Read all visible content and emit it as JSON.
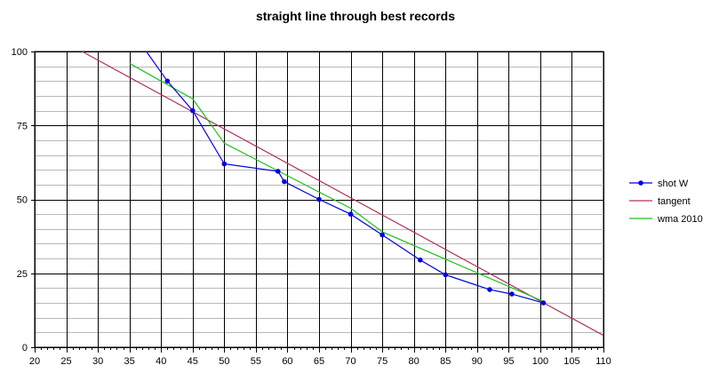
{
  "chart_data": {
    "type": "line",
    "title": "straight line through best records",
    "xlabel": "",
    "ylabel": "",
    "xlim": [
      20,
      110
    ],
    "ylim": [
      0,
      100
    ],
    "x_ticks": [
      20,
      25,
      30,
      35,
      40,
      45,
      50,
      55,
      60,
      65,
      70,
      75,
      80,
      85,
      90,
      95,
      100,
      105,
      110
    ],
    "y_ticks": [
      0,
      25,
      50,
      75,
      100
    ],
    "grid": true,
    "legend_position": "right",
    "series": [
      {
        "name": "shot W",
        "color": "#0000dd",
        "markers": true,
        "points": [
          [
            36,
            105
          ],
          [
            41,
            90
          ],
          [
            45,
            80
          ],
          [
            50,
            62
          ],
          [
            58.5,
            59.5
          ],
          [
            59.5,
            56
          ],
          [
            65,
            50
          ],
          [
            70,
            45
          ],
          [
            75,
            38
          ],
          [
            81,
            29.5
          ],
          [
            85,
            24.5
          ],
          [
            92,
            19.5
          ],
          [
            95.5,
            18
          ],
          [
            100.5,
            15
          ]
        ]
      },
      {
        "name": "tangent",
        "color": "#b03060",
        "markers": false,
        "points": [
          [
            27.5,
            100
          ],
          [
            110,
            4
          ]
        ]
      },
      {
        "name": "wma 2010",
        "color": "#1fbf1f",
        "markers": false,
        "points": [
          [
            35,
            96
          ],
          [
            45,
            84
          ],
          [
            50,
            69
          ],
          [
            60,
            58
          ],
          [
            70,
            47
          ],
          [
            75,
            39
          ],
          [
            100.5,
            15.5
          ]
        ]
      }
    ]
  }
}
